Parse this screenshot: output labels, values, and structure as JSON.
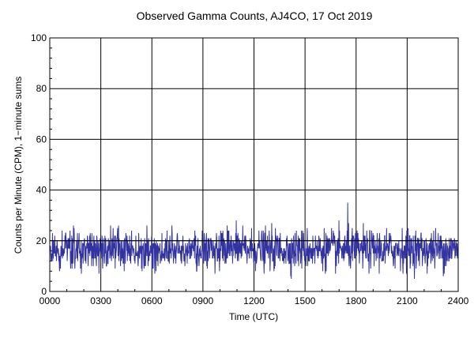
{
  "chart_data": {
    "type": "line",
    "title": "Observed Gamma Counts, AJ4CO, 17 Oct 2019",
    "xlabel": "Time (UTC)",
    "ylabel": "Counts per Minute (CPM), 1−minute sums",
    "x_ticks": [
      "0000",
      "0300",
      "0600",
      "0900",
      "1200",
      "1500",
      "1800",
      "2100",
      "2400"
    ],
    "y_ticks": [
      0,
      20,
      40,
      60,
      80,
      100
    ],
    "xlim_minutes": [
      0,
      1440
    ],
    "ylim": [
      0,
      100
    ],
    "grid": true,
    "reference_line_y": 20,
    "series_color": "#3333a0",
    "series": [
      {
        "sampling_minutes": 1,
        "count": 1440,
        "mean_cpm": 16.5,
        "min_cpm": 5,
        "max_cpm": 35,
        "notable_peak": {
          "time": "1730",
          "value": 35
        }
      }
    ]
  }
}
